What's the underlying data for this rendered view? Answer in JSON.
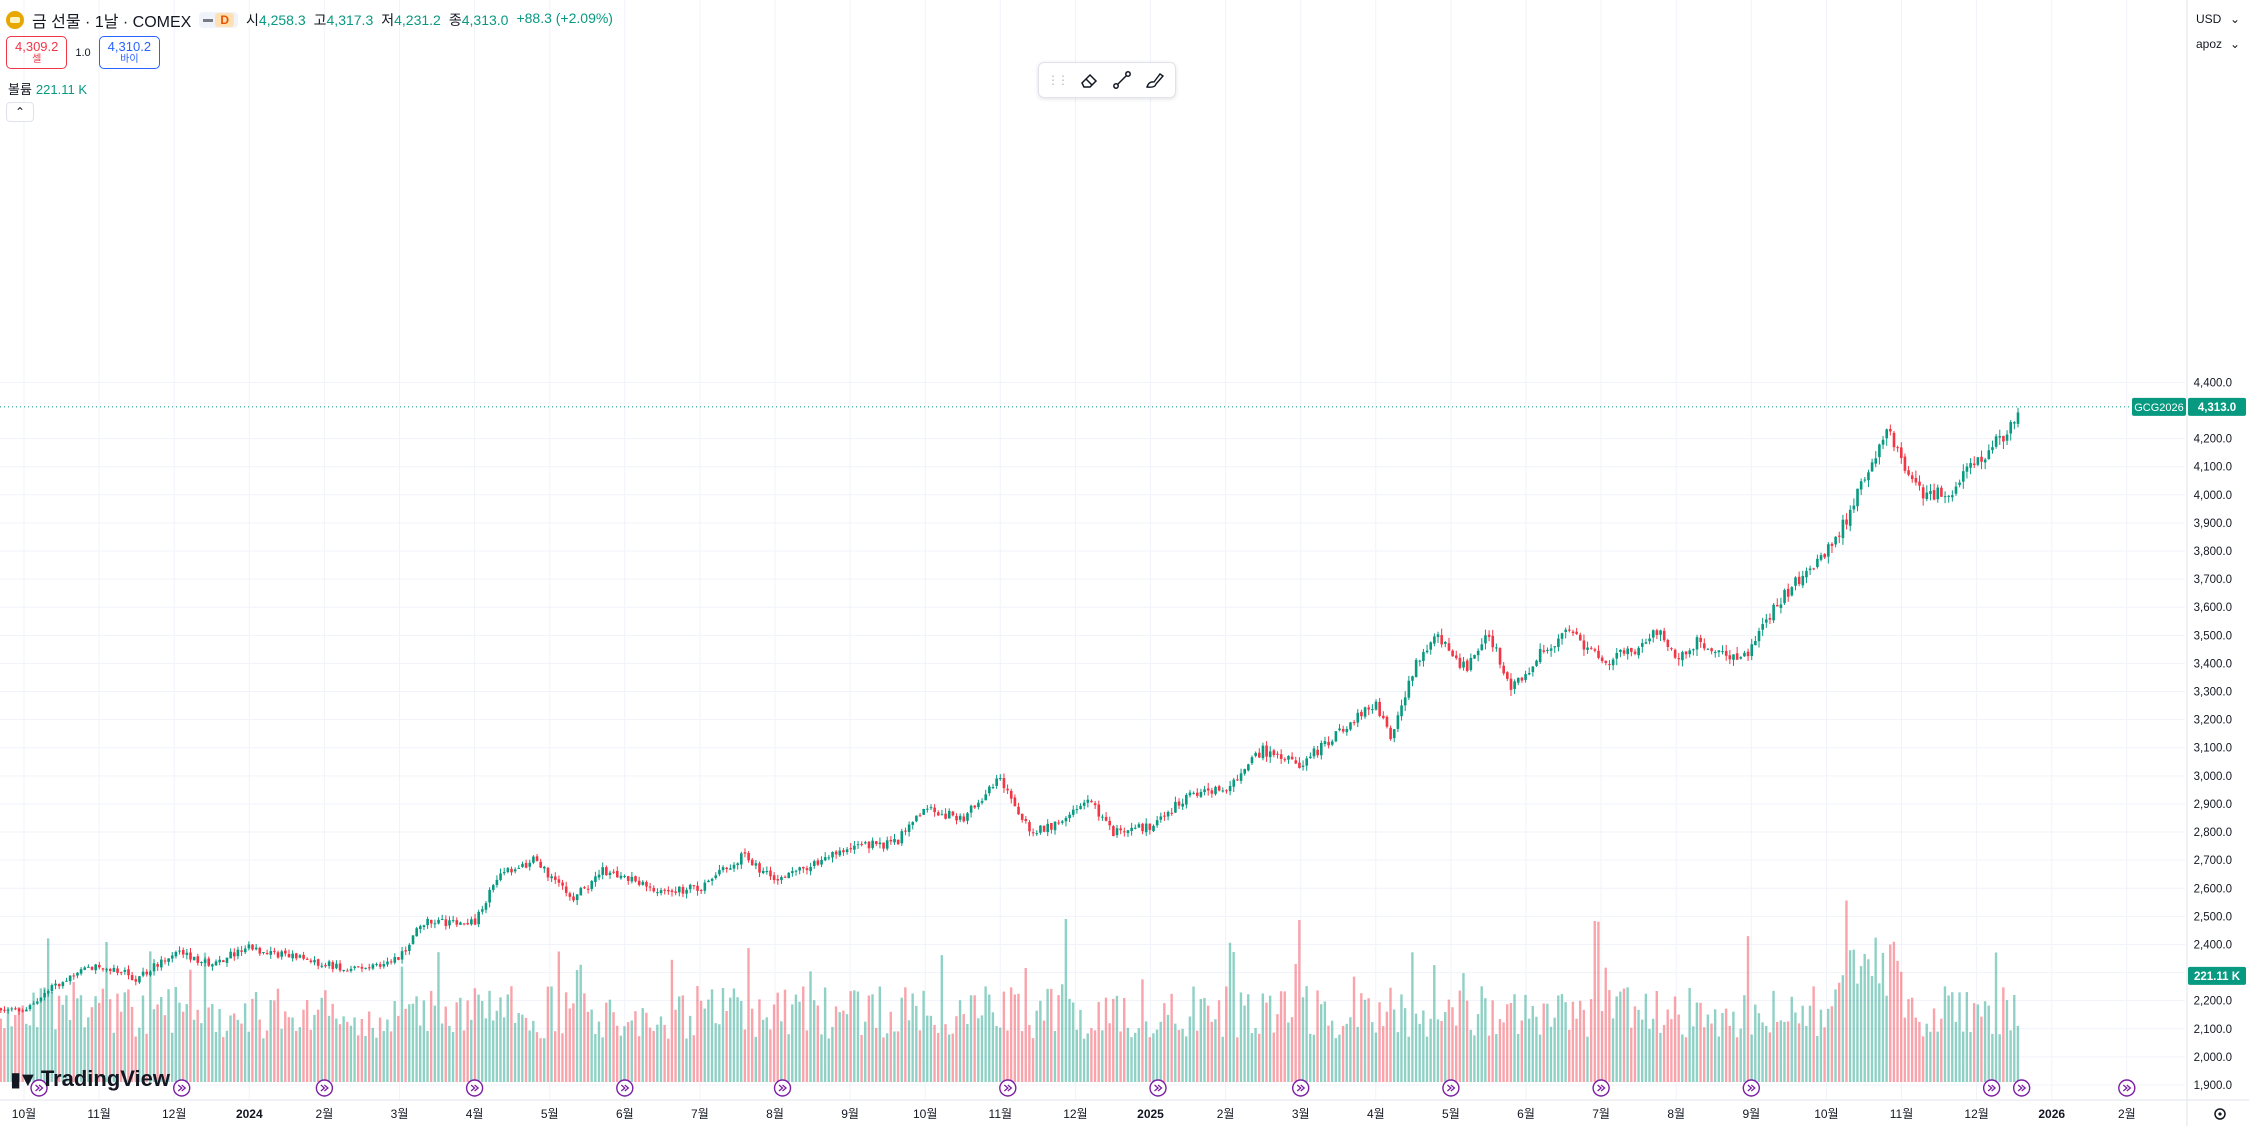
{
  "header": {
    "title": "금 선물 · 1날 · COMEX",
    "interval_badge": "D",
    "ohlc": [
      {
        "label": "시",
        "value": "4,258.3"
      },
      {
        "label": "고",
        "value": "4,317.3"
      },
      {
        "label": "저",
        "value": "4,231.2"
      },
      {
        "label": "종",
        "value": "4,313.0"
      }
    ],
    "change": "+88.3 (+2.09%)"
  },
  "trade": {
    "sell_price": "4,309.2",
    "sell_label": "셀",
    "spread": "1.0",
    "buy_price": "4,310.2",
    "buy_label": "바이"
  },
  "volume_legend": {
    "label": "볼륨",
    "value": "221.11 K"
  },
  "collapse_glyph": "⌃",
  "toolbar": {
    "tools": [
      "eraser-icon",
      "trend-line-icon",
      "brush-icon"
    ]
  },
  "axis": {
    "currency": "USD",
    "currency_caret": "⌄",
    "scale_menu": "apoz",
    "price_label": "GCG2026",
    "price_value": "4,313.0",
    "volume_value": "221.11 K",
    "settings_icon": "gear-icon"
  },
  "colors": {
    "up": "#089981",
    "down": "#f23645",
    "accent": "#2962ff",
    "events": "#7b1fa2"
  },
  "watermark": "TradingView",
  "chart_data": {
    "type": "candlestick",
    "price_ylim": [
      1890,
      4430
    ],
    "price_ticks": [
      "4,400.0",
      "4,200.0",
      "4,100.0",
      "4,000.0",
      "3,900.0",
      "3,800.0",
      "3,700.0",
      "3,600.0",
      "3,500.0",
      "3,400.0",
      "3,300.0",
      "3,200.0",
      "3,100.0",
      "3,000.0",
      "2,900.0",
      "2,800.0",
      "2,700.0",
      "2,600.0",
      "2,500.0",
      "2,400.0",
      "2,300.0",
      "2,200.0",
      "2,100.0",
      "2,000.0",
      "1,900.0"
    ],
    "x_labels": [
      {
        "label": "10월",
        "month": 0
      },
      {
        "label": "11월",
        "month": 1
      },
      {
        "label": "12월",
        "month": 2
      },
      {
        "label": "2024",
        "month": 3
      },
      {
        "label": "2월",
        "month": 4
      },
      {
        "label": "3월",
        "month": 5
      },
      {
        "label": "4월",
        "month": 6
      },
      {
        "label": "5월",
        "month": 7
      },
      {
        "label": "6월",
        "month": 8
      },
      {
        "label": "7월",
        "month": 9
      },
      {
        "label": "8월",
        "month": 10
      },
      {
        "label": "9월",
        "month": 11
      },
      {
        "label": "10월",
        "month": 12
      },
      {
        "label": "11월",
        "month": 13
      },
      {
        "label": "12월",
        "month": 14
      },
      {
        "label": "2025",
        "month": 15
      },
      {
        "label": "2월",
        "month": 16
      },
      {
        "label": "3월",
        "month": 17
      },
      {
        "label": "4월",
        "month": 18
      },
      {
        "label": "5월",
        "month": 19
      },
      {
        "label": "6월",
        "month": 20
      },
      {
        "label": "7월",
        "month": 21
      },
      {
        "label": "8월",
        "month": 22
      },
      {
        "label": "9월",
        "month": 23
      },
      {
        "label": "10월",
        "month": 24
      },
      {
        "label": "11월",
        "month": 25
      },
      {
        "label": "12월",
        "month": 26
      },
      {
        "label": "2026",
        "month": 27
      },
      {
        "label": "2월",
        "month": 28
      }
    ],
    "month_closes": [
      {
        "month": 0,
        "close": 2170
      },
      {
        "month": 0.5,
        "close": 2270
      },
      {
        "month": 1,
        "close": 2330
      },
      {
        "month": 1.5,
        "close": 2280
      },
      {
        "month": 2,
        "close": 2370
      },
      {
        "month": 2.5,
        "close": 2330
      },
      {
        "month": 3,
        "close": 2390
      },
      {
        "month": 3.5,
        "close": 2360
      },
      {
        "month": 4,
        "close": 2330
      },
      {
        "month": 4.5,
        "close": 2310
      },
      {
        "month": 5,
        "close": 2350
      },
      {
        "month": 5.3,
        "close": 2480
      },
      {
        "month": 6,
        "close": 2480
      },
      {
        "month": 6.3,
        "close": 2640
      },
      {
        "month": 6.8,
        "close": 2700
      },
      {
        "month": 7.3,
        "close": 2560
      },
      {
        "month": 7.7,
        "close": 2660
      },
      {
        "month": 8,
        "close": 2640
      },
      {
        "month": 8.5,
        "close": 2590
      },
      {
        "month": 9,
        "close": 2600
      },
      {
        "month": 9.6,
        "close": 2720
      },
      {
        "month": 10,
        "close": 2620
      },
      {
        "month": 10.5,
        "close": 2690
      },
      {
        "month": 11,
        "close": 2750
      },
      {
        "month": 11.6,
        "close": 2760
      },
      {
        "month": 12,
        "close": 2880
      },
      {
        "month": 12.5,
        "close": 2850
      },
      {
        "month": 13,
        "close": 2990
      },
      {
        "month": 13.4,
        "close": 2800
      },
      {
        "month": 13.8,
        "close": 2830
      },
      {
        "month": 14.2,
        "close": 2910
      },
      {
        "month": 14.5,
        "close": 2800
      },
      {
        "month": 15,
        "close": 2820
      },
      {
        "month": 15.5,
        "close": 2930
      },
      {
        "month": 16,
        "close": 2960
      },
      {
        "month": 16.5,
        "close": 3090
      },
      {
        "month": 17,
        "close": 3040
      },
      {
        "month": 17.5,
        "close": 3150
      },
      {
        "month": 18,
        "close": 3260
      },
      {
        "month": 18.2,
        "close": 3120
      },
      {
        "month": 18.5,
        "close": 3380
      },
      {
        "month": 18.8,
        "close": 3500
      },
      {
        "month": 19.2,
        "close": 3380
      },
      {
        "month": 19.5,
        "close": 3520
      },
      {
        "month": 19.8,
        "close": 3300
      },
      {
        "month": 20.2,
        "close": 3440
      },
      {
        "month": 20.6,
        "close": 3520
      },
      {
        "month": 21,
        "close": 3400
      },
      {
        "month": 21.5,
        "close": 3460
      },
      {
        "month": 21.8,
        "close": 3520
      },
      {
        "month": 22,
        "close": 3400
      },
      {
        "month": 22.3,
        "close": 3480
      },
      {
        "month": 22.7,
        "close": 3420
      },
      {
        "month": 23,
        "close": 3450
      },
      {
        "month": 23.3,
        "close": 3600
      },
      {
        "month": 23.7,
        "close": 3720
      },
      {
        "month": 24.1,
        "close": 3820
      },
      {
        "month": 24.5,
        "close": 4050
      },
      {
        "month": 24.8,
        "close": 4250
      },
      {
        "month": 25,
        "close": 4120
      },
      {
        "month": 25.3,
        "close": 4000
      },
      {
        "month": 25.7,
        "close": 4020
      },
      {
        "month": 26,
        "close": 4120
      },
      {
        "month": 26.4,
        "close": 4220
      },
      {
        "month": 26.6,
        "close": 4313
      }
    ],
    "current_price": 4313.0,
    "volume_ylim": [
      0,
      320
    ],
    "volume_latest": 221.11,
    "event_marker_months": [
      0.2,
      2.1,
      4.0,
      6.0,
      8.0,
      10.1,
      13.1,
      15.1,
      17.0,
      19.0,
      21.0,
      23.0,
      26.2,
      26.6,
      28.0
    ]
  }
}
